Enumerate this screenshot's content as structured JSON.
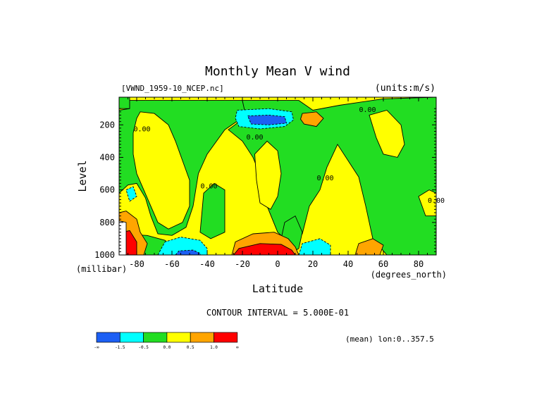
{
  "chart_data": {
    "type": "heatmap",
    "title": "Monthly Mean V wind",
    "subtitle_left": "[VWND_1959-10_NCEP.nc]",
    "subtitle_right": "(units:m/s)",
    "xlabel": "Latitude",
    "x_units": "(degrees_north)",
    "ylabel": "Level",
    "y_units": "(millibar)",
    "xlim": [
      -90,
      90
    ],
    "ylim": [
      1000,
      30
    ],
    "x_ticks": [
      -80,
      -60,
      -40,
      -20,
      0,
      20,
      40,
      60,
      80
    ],
    "x_tick_labels": [
      "-80",
      "-60",
      "-40",
      "-20",
      "0",
      "20",
      "40",
      "60",
      "80"
    ],
    "y_ticks": [
      200,
      400,
      600,
      800,
      1000
    ],
    "y_tick_labels": [
      "200",
      "400",
      "600",
      "800",
      "1000"
    ],
    "contour_interval_text": "CONTOUR INTERVAL = 5.000E-01",
    "mean_text": "(mean) lon:0..357.5",
    "contour_labels": [
      {
        "text": "0.00",
        "x": 51,
        "y": 120
      },
      {
        "text": "0.00",
        "x": -77,
        "y": 240
      },
      {
        "text": "0.00",
        "x": -13,
        "y": 290
      },
      {
        "text": "0.00",
        "x": 27,
        "y": 540
      },
      {
        "text": "0.00",
        "x": -39,
        "y": 590
      },
      {
        "text": "0.00",
        "x": 90,
        "y": 680
      }
    ],
    "colorbar": {
      "colors": [
        "#1c5ff4",
        "#00ffff",
        "#22dd22",
        "#ffff00",
        "#ffa500",
        "#ff0000"
      ],
      "tick_labels": [
        "-∞",
        "-1.5",
        "-0.5",
        "0.0",
        "0.5",
        "1.0",
        "∞"
      ]
    },
    "regions": [
      {
        "color": "#ffff00",
        "points": [
          [
            -90,
            30
          ],
          [
            90,
            30
          ],
          [
            90,
            1000
          ],
          [
            -90,
            1000
          ]
        ]
      },
      {
        "color": "#22dd22",
        "points": [
          [
            -90,
            30
          ],
          [
            -84,
            30
          ],
          [
            -84,
            100
          ],
          [
            -90,
            100
          ]
        ]
      },
      {
        "color": "#22dd22",
        "points": [
          [
            -84,
            50
          ],
          [
            -20,
            50
          ],
          [
            -18,
            140
          ],
          [
            -30,
            230
          ],
          [
            -40,
            380
          ],
          [
            -45,
            500
          ],
          [
            -48,
            700
          ],
          [
            -52,
            830
          ],
          [
            -60,
            880
          ],
          [
            -68,
            870
          ],
          [
            -72,
            760
          ],
          [
            -75,
            650
          ],
          [
            -80,
            560
          ],
          [
            -85,
            570
          ],
          [
            -90,
            620
          ],
          [
            -90,
            110
          ],
          [
            -84,
            100
          ]
        ]
      },
      {
        "color": "#22dd22",
        "points": [
          [
            -20,
            50
          ],
          [
            12,
            50
          ],
          [
            16,
            80
          ],
          [
            20,
            110
          ],
          [
            35,
            80
          ],
          [
            60,
            40
          ],
          [
            90,
            30
          ],
          [
            90,
            1000
          ],
          [
            62,
            1000
          ],
          [
            54,
            900
          ],
          [
            50,
            700
          ],
          [
            46,
            520
          ],
          [
            40,
            420
          ],
          [
            34,
            320
          ],
          [
            28,
            460
          ],
          [
            24,
            600
          ],
          [
            18,
            700
          ],
          [
            14,
            870
          ],
          [
            8,
            940
          ],
          [
            0,
            860
          ],
          [
            -6,
            700
          ],
          [
            -8,
            560
          ],
          [
            -14,
            400
          ],
          [
            -20,
            300
          ],
          [
            -28,
            230
          ],
          [
            -18,
            150
          ]
        ]
      },
      {
        "color": "#22dd22",
        "points": [
          [
            -42,
            620
          ],
          [
            -36,
            560
          ],
          [
            -30,
            600
          ],
          [
            -30,
            860
          ],
          [
            -38,
            900
          ],
          [
            -44,
            860
          ]
        ]
      },
      {
        "color": "#22dd22",
        "points": [
          [
            -90,
            870
          ],
          [
            -74,
            880
          ],
          [
            -64,
            910
          ],
          [
            -58,
            960
          ],
          [
            -60,
            1000
          ],
          [
            -90,
            1000
          ]
        ]
      },
      {
        "color": "#22dd22",
        "points": [
          [
            4,
            800
          ],
          [
            10,
            760
          ],
          [
            14,
            860
          ],
          [
            12,
            960
          ],
          [
            6,
            1000
          ],
          [
            0,
            1000
          ]
        ]
      },
      {
        "color": "#ffff00",
        "points": [
          [
            -78,
            120
          ],
          [
            -70,
            130
          ],
          [
            -62,
            200
          ],
          [
            -58,
            300
          ],
          [
            -54,
            420
          ],
          [
            -50,
            540
          ],
          [
            -50,
            700
          ],
          [
            -54,
            800
          ],
          [
            -62,
            840
          ],
          [
            -68,
            800
          ],
          [
            -72,
            700
          ],
          [
            -76,
            600
          ],
          [
            -80,
            500
          ],
          [
            -82,
            380
          ],
          [
            -82,
            250
          ],
          [
            -80,
            160
          ]
        ]
      },
      {
        "color": "#ffff00",
        "points": [
          [
            -13,
            380
          ],
          [
            -6,
            300
          ],
          [
            0,
            360
          ],
          [
            2,
            500
          ],
          [
            0,
            640
          ],
          [
            -4,
            720
          ],
          [
            -10,
            680
          ],
          [
            -12,
            540
          ]
        ]
      },
      {
        "color": "#ffff00",
        "points": [
          [
            52,
            140
          ],
          [
            62,
            110
          ],
          [
            70,
            200
          ],
          [
            72,
            320
          ],
          [
            68,
            400
          ],
          [
            60,
            380
          ],
          [
            56,
            280
          ]
        ]
      },
      {
        "color": "#ffff00",
        "points": [
          [
            80,
            640
          ],
          [
            86,
            600
          ],
          [
            90,
            620
          ],
          [
            90,
            760
          ],
          [
            84,
            760
          ]
        ]
      },
      {
        "color": "#00ffff",
        "points": [
          [
            -23,
            110
          ],
          [
            -5,
            100
          ],
          [
            8,
            120
          ],
          [
            9,
            170
          ],
          [
            4,
            210
          ],
          [
            -10,
            225
          ],
          [
            -22,
            210
          ],
          [
            -24,
            160
          ]
        ]
      },
      {
        "color": "#1c5ff4",
        "points": [
          [
            -17,
            145
          ],
          [
            -5,
            140
          ],
          [
            4,
            150
          ],
          [
            5,
            190
          ],
          [
            -5,
            200
          ],
          [
            -15,
            195
          ]
        ]
      },
      {
        "color": "#ffa500",
        "points": [
          [
            14,
            130
          ],
          [
            22,
            120
          ],
          [
            26,
            160
          ],
          [
            22,
            210
          ],
          [
            15,
            195
          ],
          [
            13,
            165
          ]
        ]
      },
      {
        "color": "#ffa500",
        "points": [
          [
            -26,
            1000
          ],
          [
            -24,
            920
          ],
          [
            -14,
            870
          ],
          [
            -2,
            860
          ],
          [
            6,
            900
          ],
          [
            10,
            950
          ],
          [
            12,
            1000
          ]
        ]
      },
      {
        "color": "#ff0000",
        "points": [
          [
            -25,
            1000
          ],
          [
            -22,
            960
          ],
          [
            -10,
            930
          ],
          [
            2,
            935
          ],
          [
            8,
            970
          ],
          [
            10,
            1000
          ]
        ]
      },
      {
        "color": "#00ffff",
        "points": [
          [
            -68,
            1000
          ],
          [
            -64,
            920
          ],
          [
            -55,
            890
          ],
          [
            -44,
            910
          ],
          [
            -40,
            960
          ],
          [
            -40,
            1000
          ]
        ]
      },
      {
        "color": "#1c5ff4",
        "points": [
          [
            -58,
            1000
          ],
          [
            -56,
            975
          ],
          [
            -48,
            970
          ],
          [
            -44,
            990
          ],
          [
            -44,
            1000
          ]
        ]
      },
      {
        "color": "#00ffff",
        "points": [
          [
            12,
            1000
          ],
          [
            14,
            930
          ],
          [
            24,
            900
          ],
          [
            30,
            940
          ],
          [
            30,
            1000
          ]
        ]
      },
      {
        "color": "#ffa500",
        "points": [
          [
            44,
            1000
          ],
          [
            46,
            930
          ],
          [
            54,
            900
          ],
          [
            60,
            940
          ],
          [
            58,
            1000
          ]
        ]
      },
      {
        "color": "#00ffff",
        "points": [
          [
            -86,
            600
          ],
          [
            -82,
            580
          ],
          [
            -80,
            640
          ],
          [
            -84,
            670
          ]
        ]
      },
      {
        "color": "#ffa500",
        "points": [
          [
            -90,
            740
          ],
          [
            -86,
            730
          ],
          [
            -80,
            780
          ],
          [
            -78,
            860
          ],
          [
            -74,
            930
          ],
          [
            -76,
            1000
          ],
          [
            -90,
            1000
          ]
        ]
      },
      {
        "color": "#ff0000",
        "points": [
          [
            -88,
            860
          ],
          [
            -84,
            850
          ],
          [
            -80,
            920
          ],
          [
            -80,
            1000
          ],
          [
            -87,
            1000
          ]
        ]
      },
      {
        "color": "#ffffff",
        "points": [
          [
            -90,
            790
          ],
          [
            -86,
            800
          ],
          [
            -86,
            1000
          ],
          [
            -90,
            1000
          ]
        ]
      }
    ]
  }
}
